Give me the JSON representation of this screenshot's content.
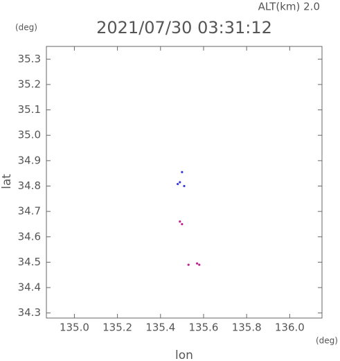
{
  "chart_data": {
    "type": "scatter",
    "title": "2021/07/30 03:31:12",
    "altitude_label": "ALT(km) 2.0",
    "y_unit": "(deg)",
    "x_unit": "(deg)",
    "ylabel": "lat",
    "xlabel": "lon",
    "x": [
      135.48,
      135.49,
      135.5,
      135.51,
      135.49,
      135.5,
      135.53,
      135.57,
      135.58
    ],
    "values": [
      34.808,
      34.815,
      34.855,
      34.8,
      34.66,
      34.65,
      34.49,
      34.495,
      34.49
    ],
    "colors": [
      "#3a3ad8",
      "#3a3ad8",
      "#3a3ad8",
      "#3a3ad8",
      "#c02090",
      "#c02090",
      "#c02090",
      "#c02090",
      "#c02090"
    ],
    "xlim": [
      134.87,
      136.15
    ],
    "xticks": [
      {
        "value": 135,
        "label": "135.0"
      },
      135.2,
      135.4,
      135.6,
      135.8,
      {
        "value": 136,
        "label": "136.0"
      }
    ],
    "ylim": [
      34.28,
      35.35
    ],
    "yticks": [
      34.3,
      34.4,
      34.5,
      34.6,
      34.7,
      34.8,
      34.9,
      {
        "value": 35,
        "label": "35.0"
      },
      35.1,
      35.2,
      35.3
    ]
  }
}
